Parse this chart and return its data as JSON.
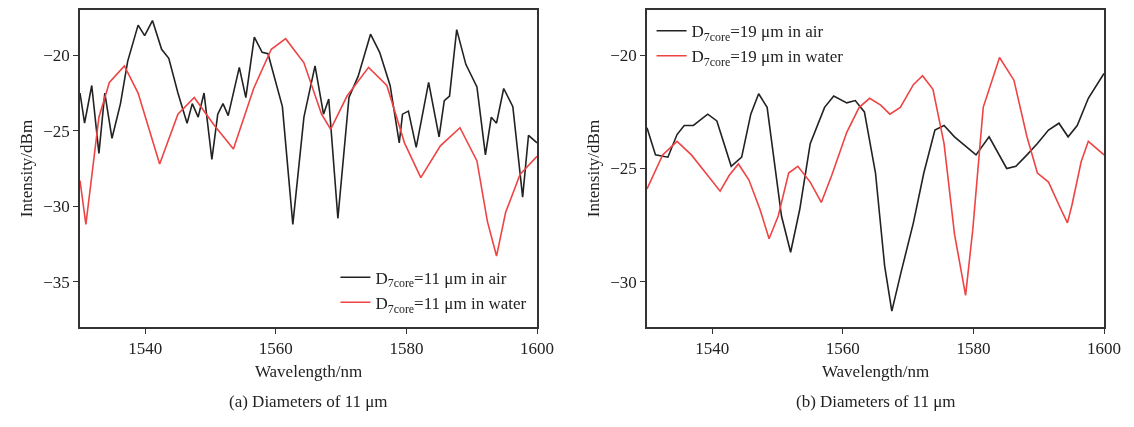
{
  "chart_data": [
    {
      "type": "line",
      "xlabel": "Wavelength/nm",
      "ylabel": "Intensity/dBm",
      "annotations": [
        "(a) Diameters of 11 μm"
      ],
      "xlim": [
        1530,
        1600
      ],
      "ylim": [
        -38,
        -17
      ],
      "xticks": [
        1540,
        1560,
        1580,
        1600
      ],
      "yticks": [
        {
          "value": -35,
          "label": "−35"
        },
        {
          "value": -30,
          "label": "−30"
        },
        {
          "value": -25,
          "label": "−25"
        },
        {
          "value": -20,
          "label": "−20"
        }
      ],
      "grid": false,
      "legend": "bottom right",
      "line_style": "solid",
      "marker": "none",
      "series": [
        {
          "name": "D$_{7core}$=11 μm in air",
          "color": "#222222",
          "x": [
            1530,
            1530.7,
            1531.8,
            1532.9,
            1533.8,
            1534.9,
            1536.2,
            1537.3,
            1538.9,
            1539.9,
            1541.1,
            1542.5,
            1543.6,
            1545,
            1546.4,
            1547.2,
            1548.1,
            1549,
            1550.2,
            1551.1,
            1551.9,
            1552.7,
            1554.4,
            1555.4,
            1556.7,
            1557.9,
            1558.8,
            1561,
            1562.6,
            1564.3,
            1566,
            1567.3,
            1568.1,
            1569.5,
            1571.2,
            1572.6,
            1574.5,
            1575.9,
            1577.5,
            1578.9,
            1579.4,
            1580.3,
            1581.5,
            1583.4,
            1585,
            1585.8,
            1586.6,
            1587.7,
            1589.1,
            1590.8,
            1592.1,
            1593,
            1593.8,
            1594.9,
            1596.3,
            1597.8,
            1598.7,
            1600
          ],
          "values": [
            -22.5,
            -24.5,
            -22,
            -26.5,
            -22.5,
            -25.5,
            -23.2,
            -20.4,
            -18,
            -18.7,
            -17.7,
            -19.6,
            -20.2,
            -22.5,
            -24.5,
            -23.2,
            -24.1,
            -22.5,
            -26.9,
            -23.9,
            -23.2,
            -24,
            -20.8,
            -22.8,
            -18.8,
            -19.8,
            -19.9,
            -23.4,
            -31.2,
            -24.1,
            -20.7,
            -23.9,
            -22.9,
            -30.8,
            -22.8,
            -21.4,
            -18.6,
            -19.8,
            -22,
            -25.8,
            -23.9,
            -23.7,
            -26.1,
            -21.8,
            -25.4,
            -23,
            -22.7,
            -18.3,
            -20.6,
            -22.1,
            -26.6,
            -24.1,
            -24.5,
            -22.2,
            -23.4,
            -29.4,
            -25.3,
            -25.8
          ]
        },
        {
          "name": "D$_{7core}$=11 μm in water",
          "color": "#ee4444",
          "x": [
            1530,
            1530.9,
            1532.9,
            1534.5,
            1536.8,
            1538.9,
            1542.2,
            1545,
            1547.5,
            1550.5,
            1553.5,
            1556.6,
            1559.3,
            1561.5,
            1564.3,
            1567,
            1568.4,
            1570.9,
            1574.2,
            1577,
            1579.7,
            1582.2,
            1585.2,
            1588.2,
            1590.8,
            1592.4,
            1593.8,
            1595.2,
            1597.4,
            1600
          ],
          "values": [
            -28.3,
            -31.2,
            -24.1,
            -21.8,
            -20.7,
            -22.5,
            -27.2,
            -23.9,
            -22.8,
            -24.6,
            -26.2,
            -22.2,
            -19.6,
            -18.9,
            -20.5,
            -23.9,
            -24.9,
            -22.7,
            -20.8,
            -22,
            -25.8,
            -28.1,
            -26,
            -24.8,
            -27,
            -31,
            -33.3,
            -30.4,
            -27.9,
            -26.7
          ]
        }
      ]
    },
    {
      "type": "line",
      "xlabel": "Wavelength/nm",
      "ylabel": "Intensity/dBm",
      "annotations": [
        "(b) Diameters of 11 μm"
      ],
      "xlim": [
        1530,
        1600
      ],
      "ylim": [
        -32,
        -18
      ],
      "xticks": [
        1540,
        1560,
        1580,
        1600
      ],
      "yticks": [
        {
          "value": -30,
          "label": "−30"
        },
        {
          "value": -25,
          "label": "−25"
        },
        {
          "value": -20,
          "label": "−20"
        }
      ],
      "grid": false,
      "legend": "top left",
      "line_style": "solid",
      "marker": "none",
      "series": [
        {
          "name": "D$_{7core}$=19 μm in air",
          "color": "#222222",
          "x": [
            1530,
            1531.3,
            1533.2,
            1534.6,
            1535.7,
            1537.1,
            1539.3,
            1540.7,
            1542.9,
            1544.5,
            1545.9,
            1547.1,
            1548.4,
            1550.6,
            1552,
            1553.4,
            1555,
            1557.2,
            1558.6,
            1560.6,
            1561.9,
            1563.3,
            1565,
            1566.4,
            1567.5,
            1568.9,
            1570.8,
            1572.4,
            1574.1,
            1575.5,
            1577.1,
            1580.4,
            1582.4,
            1585.1,
            1586.5,
            1588.2,
            1589.8,
            1591.5,
            1593.1,
            1594.5,
            1595.9,
            1597.6,
            1600
          ],
          "values": [
            -23.2,
            -24.4,
            -24.5,
            -23.5,
            -23.1,
            -23.1,
            -22.6,
            -22.9,
            -24.9,
            -24.5,
            -22.6,
            -21.7,
            -22.3,
            -27.1,
            -28.7,
            -26.8,
            -23.9,
            -22.3,
            -21.8,
            -22.1,
            -22,
            -22.5,
            -25.2,
            -29.3,
            -31.3,
            -29.6,
            -27.4,
            -25.2,
            -23.3,
            -23.1,
            -23.6,
            -24.4,
            -23.6,
            -25,
            -24.9,
            -24.4,
            -23.9,
            -23.3,
            -23,
            -23.6,
            -23.1,
            -21.9,
            -20.8
          ]
        },
        {
          "name": "D$_{7core}$=19 μm in water",
          "color": "#ee4444",
          "x": [
            1530,
            1532.4,
            1534.6,
            1536.8,
            1539,
            1541.2,
            1542.6,
            1544,
            1545.6,
            1547.3,
            1548.7,
            1550.1,
            1551.7,
            1553.1,
            1555,
            1556.7,
            1558.3,
            1560.6,
            1562.5,
            1564.1,
            1565.8,
            1567.2,
            1568.8,
            1570.8,
            1572.2,
            1573.8,
            1575.5,
            1577.1,
            1578.8,
            1579.9,
            1581.5,
            1584,
            1586.2,
            1588.2,
            1589.8,
            1591.5,
            1593.4,
            1594.4,
            1595.1,
            1596.5,
            1597.6,
            1600
          ],
          "values": [
            -25.9,
            -24.4,
            -23.8,
            -24.4,
            -25.2,
            -26,
            -25.3,
            -24.8,
            -25.5,
            -26.8,
            -28.1,
            -27.1,
            -25.2,
            -24.9,
            -25.6,
            -26.5,
            -25.3,
            -23.4,
            -22.3,
            -21.9,
            -22.2,
            -22.6,
            -22.3,
            -21.3,
            -20.9,
            -21.5,
            -23.9,
            -27.9,
            -30.6,
            -27.7,
            -22.3,
            -20.1,
            -21.1,
            -23.6,
            -25.2,
            -25.6,
            -26.8,
            -27.4,
            -26.6,
            -24.7,
            -23.8,
            -24.4
          ]
        }
      ]
    }
  ]
}
